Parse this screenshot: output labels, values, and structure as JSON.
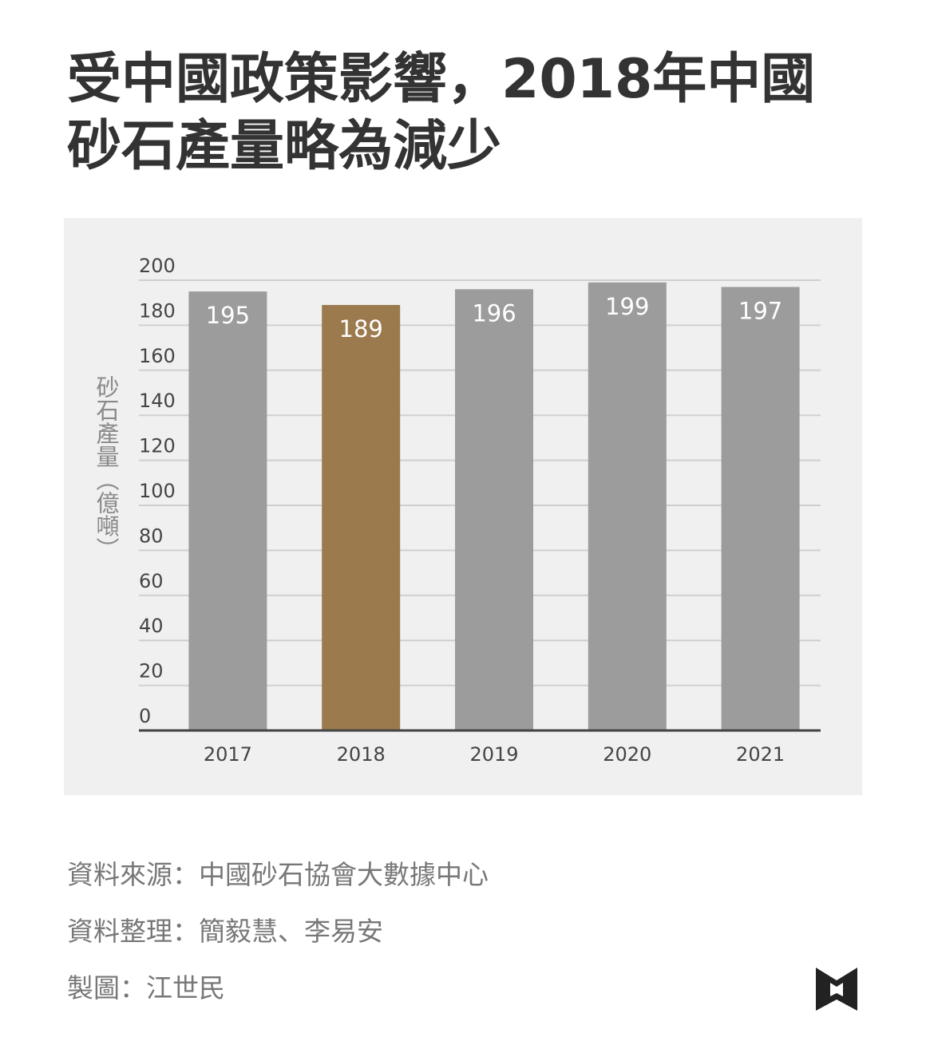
{
  "chart_data": {
    "type": "bar",
    "title": "受中國政策影響，2018年中國砂石產量略為減少",
    "ylabel": "砂石產量（億噸）",
    "xlabel": "",
    "ylim": [
      0,
      200
    ],
    "yticks": [
      0,
      20,
      40,
      60,
      80,
      100,
      120,
      140,
      160,
      180,
      200
    ],
    "categories": [
      "2017",
      "2018",
      "2019",
      "2020",
      "2021"
    ],
    "values": [
      195,
      189,
      196,
      199,
      197
    ],
    "highlight_category": "2018",
    "colors": {
      "bar": "#9c9c9c",
      "highlight": "#9b7a4e",
      "grid": "#cfcfcf",
      "axis": "#444444",
      "label": "#ffffff"
    },
    "grid": true
  },
  "footer": {
    "source": "資料來源：中國砂石協會大數據中心",
    "compiled": "資料整理：簡毅慧、李易安",
    "design": "製圖：江世民"
  },
  "logo": {
    "icon": "publisher-logo-icon",
    "color": "#222222"
  }
}
